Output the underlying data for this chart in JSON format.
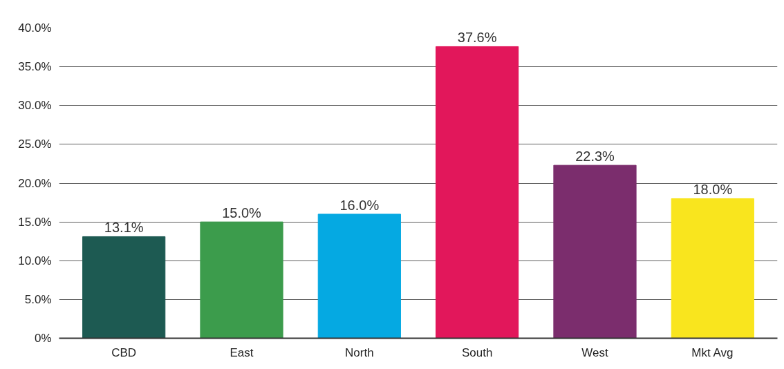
{
  "chart_data": {
    "type": "bar",
    "categories": [
      "CBD",
      "East",
      "North",
      "South",
      "West",
      "Mkt Avg"
    ],
    "values": [
      13.1,
      15.0,
      16.0,
      37.6,
      22.3,
      18.0
    ],
    "colors": [
      "#1d5a52",
      "#3c9c4c",
      "#05a9e2",
      "#e2175b",
      "#7b2d6d",
      "#f9e51e"
    ],
    "value_labels": [
      "13.1%",
      "15.0%",
      "16.0%",
      "37.6%",
      "22.3%",
      "18.0%"
    ],
    "ylim": [
      0,
      40
    ],
    "yticks": [
      {
        "value": 0,
        "label": "0%"
      },
      {
        "value": 5,
        "label": "5.0%"
      },
      {
        "value": 10,
        "label": "10.0%"
      },
      {
        "value": 15,
        "label": "15.0%"
      },
      {
        "value": 20,
        "label": "20.0%"
      },
      {
        "value": 25,
        "label": "25.0%"
      },
      {
        "value": 30,
        "label": "30.0%"
      },
      {
        "value": 35,
        "label": "35.0%"
      },
      {
        "value": 40,
        "label": "40.0%"
      }
    ],
    "grid": "y"
  }
}
